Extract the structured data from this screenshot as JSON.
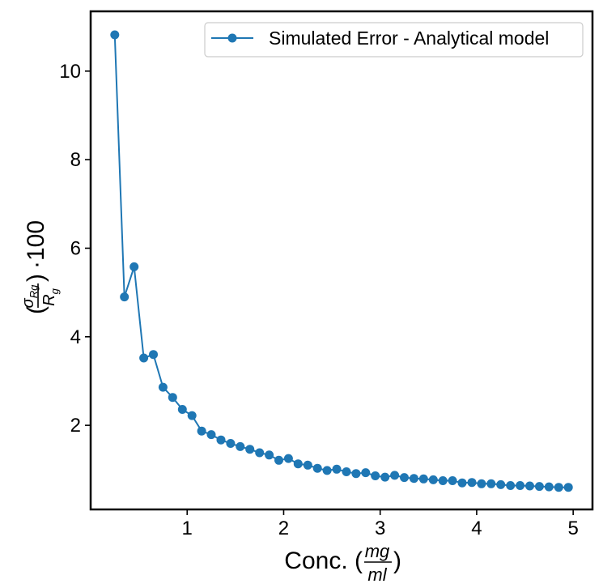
{
  "chart_data": {
    "type": "line",
    "xlabel": "Conc. (mg/ml)",
    "xlabel_parts": {
      "prefix": "Conc. (",
      "numerator": "mg",
      "denominator": "ml",
      "suffix": ")"
    },
    "ylabel": "(σRg/Rg) ·100",
    "ylabel_parts": {
      "open": "(",
      "numerator": "σ",
      "numerator_sub": "Rg",
      "denominator": "R",
      "denominator_sub": "g",
      "close": ")",
      "suffix": "·100"
    },
    "xlim": [
      0.0,
      5.2
    ],
    "ylim": [
      0.1,
      11.35
    ],
    "xticks": [
      1,
      2,
      3,
      4,
      5
    ],
    "yticks": [
      2,
      4,
      6,
      8,
      10
    ],
    "xtick_labels": [
      "1",
      "2",
      "3",
      "4",
      "5"
    ],
    "ytick_labels": [
      "2",
      "4",
      "6",
      "8",
      "10"
    ],
    "grid": false,
    "legend_position": "top-right",
    "series": [
      {
        "name": "Simulated Error - Analytical model",
        "color": "#1f77b4",
        "marker": "circle",
        "x": [
          0.25,
          0.35,
          0.45,
          0.55,
          0.65,
          0.75,
          0.85,
          0.95,
          1.05,
          1.15,
          1.25,
          1.35,
          1.45,
          1.55,
          1.65,
          1.75,
          1.85,
          1.95,
          2.05,
          2.15,
          2.25,
          2.35,
          2.45,
          2.55,
          2.65,
          2.75,
          2.85,
          2.95,
          3.05,
          3.15,
          3.25,
          3.35,
          3.45,
          3.55,
          3.65,
          3.75,
          3.85,
          3.95,
          4.05,
          4.15,
          4.25,
          4.35,
          4.45,
          4.55,
          4.65,
          4.75,
          4.85,
          4.95
        ],
        "y": [
          10.82,
          4.9,
          5.58,
          3.52,
          3.6,
          2.86,
          2.63,
          2.36,
          2.22,
          1.87,
          1.79,
          1.67,
          1.59,
          1.52,
          1.46,
          1.38,
          1.33,
          1.21,
          1.25,
          1.13,
          1.1,
          1.03,
          0.98,
          1.01,
          0.95,
          0.91,
          0.93,
          0.86,
          0.83,
          0.87,
          0.82,
          0.8,
          0.79,
          0.77,
          0.75,
          0.75,
          0.7,
          0.71,
          0.68,
          0.68,
          0.66,
          0.64,
          0.64,
          0.63,
          0.62,
          0.61,
          0.6,
          0.6
        ]
      }
    ]
  }
}
